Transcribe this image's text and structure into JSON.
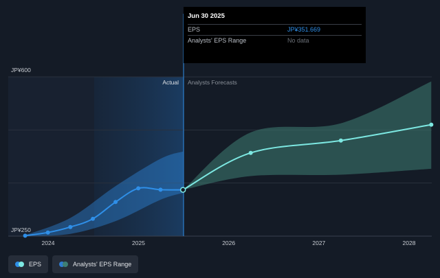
{
  "chart_data": {
    "type": "line",
    "currency_prefix": "JP¥",
    "y_tick_labels": [
      "JP¥600",
      "JP¥250"
    ],
    "ylim": [
      250,
      600
    ],
    "x_tick_labels": [
      "2024",
      "2025",
      "2026",
      "2027",
      "2028"
    ],
    "region_labels": {
      "actual": "Actual",
      "forecast": "Analysts Forecasts"
    },
    "actual_end": "2025-06-30",
    "series": [
      {
        "name": "EPS",
        "color": "#2f8fe8",
        "points": [
          {
            "x": "2023-09-30",
            "y": 251
          },
          {
            "x": "2023-12-31",
            "y": 258
          },
          {
            "x": "2024-03-31",
            "y": 270
          },
          {
            "x": "2024-06-30",
            "y": 288
          },
          {
            "x": "2024-09-30",
            "y": 325
          },
          {
            "x": "2024-12-31",
            "y": 355
          },
          {
            "x": "2025-03-31",
            "y": 352
          },
          {
            "x": "2025-06-30",
            "y": 351.669
          }
        ]
      },
      {
        "name": "EPS Forecast",
        "color": "#7de8e2",
        "points": [
          {
            "x": "2025-06-30",
            "y": 351.669
          },
          {
            "x": "2026-03-31",
            "y": 433
          },
          {
            "x": "2027-03-31",
            "y": 460
          },
          {
            "x": "2028-03-31",
            "y": 495
          }
        ]
      }
    ],
    "actual_range": {
      "upper": [
        {
          "x": "2023-09-30",
          "y": 252
        },
        {
          "x": "2024-03-31",
          "y": 290
        },
        {
          "x": "2024-09-30",
          "y": 360
        },
        {
          "x": "2025-03-31",
          "y": 420
        },
        {
          "x": "2025-06-30",
          "y": 436
        }
      ],
      "lower": [
        {
          "x": "2023-09-30",
          "y": 250
        },
        {
          "x": "2024-03-31",
          "y": 255
        },
        {
          "x": "2024-09-30",
          "y": 283
        },
        {
          "x": "2025-03-31",
          "y": 330
        },
        {
          "x": "2025-06-30",
          "y": 345
        }
      ]
    },
    "forecast_range": {
      "upper": [
        {
          "x": "2025-06-30",
          "y": 351.669
        },
        {
          "x": "2026-03-31",
          "y": 478
        },
        {
          "x": "2027-03-31",
          "y": 498
        },
        {
          "x": "2028-03-31",
          "y": 590
        }
      ],
      "lower": [
        {
          "x": "2025-06-30",
          "y": 351.669
        },
        {
          "x": "2026-03-31",
          "y": 382
        },
        {
          "x": "2027-03-31",
          "y": 385
        },
        {
          "x": "2028-03-31",
          "y": 398
        }
      ]
    },
    "legend_position": "bottom-left",
    "grid": true
  },
  "tooltip": {
    "date": "Jun 30 2025",
    "rows": [
      {
        "label": "EPS",
        "value": "JP¥351.669"
      },
      {
        "label": "Analysts' EPS Range",
        "value": "No data"
      }
    ]
  },
  "legend": [
    {
      "label": "EPS",
      "colors": [
        "#2f8fe8",
        "#7de8e2"
      ]
    },
    {
      "label": "Analysts' EPS Range",
      "colors": [
        "#2f7bd0",
        "#3e7e73"
      ]
    }
  ],
  "colors": {
    "background": "#141b26",
    "actual_band": "#2f8fe8",
    "forecast_band": "#3e7e73",
    "grid": "#2a313d"
  }
}
